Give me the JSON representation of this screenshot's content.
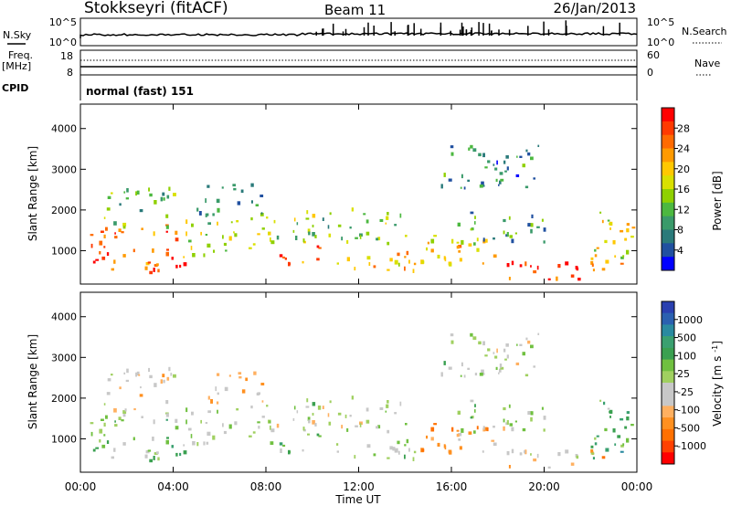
{
  "header": {
    "title": "Stokkseyri (fitACF)",
    "beam": "Beam 11",
    "date": "26/Jan/2013"
  },
  "top_panels": {
    "nsky_label": "N.Sky",
    "nsky_ticks": [
      "10^5",
      "10^0"
    ],
    "nsearch_label": "N.Search",
    "nsearch_ticks": [
      "10^5",
      "10^0"
    ],
    "freq_label": "Freq.",
    "freq_unit": "[MHz]",
    "freq_ticks": [
      "18",
      "8"
    ],
    "nave_label": "Nave",
    "nave_ticks": [
      "60",
      "0"
    ],
    "cpid_label": "CPID",
    "cpid_value": "normal (fast) 151"
  },
  "axes": {
    "ylabel": "Slant Range [km]",
    "yticks": [
      "4000",
      "3000",
      "2000",
      "1000"
    ],
    "xlabel": "Time UT",
    "xticks": [
      "00:00",
      "04:00",
      "08:00",
      "12:00",
      "16:00",
      "20:00",
      "00:00"
    ]
  },
  "colorbars": {
    "power": {
      "label": "Power [dB]",
      "ticks": [
        "28",
        "24",
        "20",
        "16",
        "12",
        "8",
        "4"
      ],
      "colors": [
        "#ff0000",
        "#ff3a00",
        "#ff6a00",
        "#ff9a00",
        "#ffc800",
        "#d9e000",
        "#8fd000",
        "#4cb840",
        "#3a9a6a",
        "#2a7a7a",
        "#2050a0",
        "#0000ff"
      ]
    },
    "velocity": {
      "label": "Velocity [m s^-1]",
      "ticks": [
        "1000",
        "500",
        "100",
        "25",
        "-25",
        "-100",
        "-500",
        "-1000"
      ],
      "colors": [
        "#2a40b0",
        "#2a60b0",
        "#2a8aa0",
        "#3aa070",
        "#3aa050",
        "#70c040",
        "#a0d060",
        "#c8c8c8",
        "#c8c8c8",
        "#ffb060",
        "#ff9020",
        "#ff7000",
        "#ff4000",
        "#ff0000"
      ]
    }
  },
  "chart_data": [
    {
      "type": "heatmap",
      "title": "Power",
      "xlabel": "Time UT",
      "ylabel": "Slant Range [km]",
      "xlim": [
        0,
        24
      ],
      "ylim": [
        180,
        4600
      ],
      "colorbar_label": "Power [dB]",
      "colorbar_range": [
        0,
        32
      ],
      "blobs": [
        {
          "t0": 0.3,
          "t1": 4.5,
          "r0": 500,
          "r1": 1700,
          "v": 27
        },
        {
          "t0": 1.0,
          "t1": 4.0,
          "r0": 1600,
          "r1": 2600,
          "v": 12
        },
        {
          "t0": 4.5,
          "t1": 8.5,
          "r0": 900,
          "r1": 1900,
          "v": 16
        },
        {
          "t0": 5.0,
          "t1": 8.0,
          "r0": 1900,
          "r1": 2700,
          "v": 9
        },
        {
          "t0": 8.5,
          "t1": 10.5,
          "r0": 650,
          "r1": 1250,
          "v": 27
        },
        {
          "t0": 9.0,
          "t1": 14.0,
          "r0": 1200,
          "r1": 2100,
          "v": 14
        },
        {
          "t0": 10.5,
          "t1": 14.5,
          "r0": 500,
          "r1": 1000,
          "v": 20
        },
        {
          "t0": 14.5,
          "t1": 18.0,
          "r0": 550,
          "r1": 1400,
          "v": 22
        },
        {
          "t0": 16.0,
          "t1": 20.0,
          "r0": 1200,
          "r1": 2000,
          "v": 9
        },
        {
          "t0": 18.0,
          "t1": 22.5,
          "r0": 300,
          "r1": 800,
          "v": 29
        },
        {
          "t0": 22.0,
          "t1": 24.0,
          "r0": 500,
          "r1": 2000,
          "v": 18
        },
        {
          "t0": 15.5,
          "t1": 20.0,
          "r0": 2500,
          "r1": 3600,
          "v": 8
        }
      ]
    },
    {
      "type": "heatmap",
      "title": "Velocity",
      "xlabel": "Time UT",
      "ylabel": "Slant Range [km]",
      "xlim": [
        0,
        24
      ],
      "ylim": [
        180,
        4600
      ],
      "colorbar_label": "Velocity [m s^-1]",
      "colorbar_range": [
        -1000,
        1000
      ],
      "blobs": [
        {
          "t0": 0.3,
          "t1": 4.5,
          "r0": 500,
          "r1": 1700,
          "v": 150
        },
        {
          "t0": 1.0,
          "t1": 4.0,
          "r0": 1600,
          "r1": 2800,
          "v": -200
        },
        {
          "t0": 4.5,
          "t1": 8.5,
          "r0": 900,
          "r1": 1900,
          "v": 0
        },
        {
          "t0": 5.5,
          "t1": 8.0,
          "r0": 1900,
          "r1": 2700,
          "v": -300
        },
        {
          "t0": 8.5,
          "t1": 10.5,
          "r0": 650,
          "r1": 1250,
          "v": 200
        },
        {
          "t0": 9.0,
          "t1": 14.0,
          "r0": 1200,
          "r1": 2100,
          "v": 0
        },
        {
          "t0": 10.5,
          "t1": 14.5,
          "r0": 500,
          "r1": 1000,
          "v": 10
        },
        {
          "t0": 14.5,
          "t1": 18.0,
          "r0": 550,
          "r1": 1400,
          "v": -400
        },
        {
          "t0": 16.0,
          "t1": 20.0,
          "r0": 1200,
          "r1": 2000,
          "v": 0
        },
        {
          "t0": 18.0,
          "t1": 22.5,
          "r0": 300,
          "r1": 800,
          "v": -300
        },
        {
          "t0": 22.0,
          "t1": 24.0,
          "r0": 500,
          "r1": 2000,
          "v": 300
        },
        {
          "t0": 15.5,
          "t1": 20.0,
          "r0": 2500,
          "r1": 3600,
          "v": 0
        }
      ]
    }
  ]
}
